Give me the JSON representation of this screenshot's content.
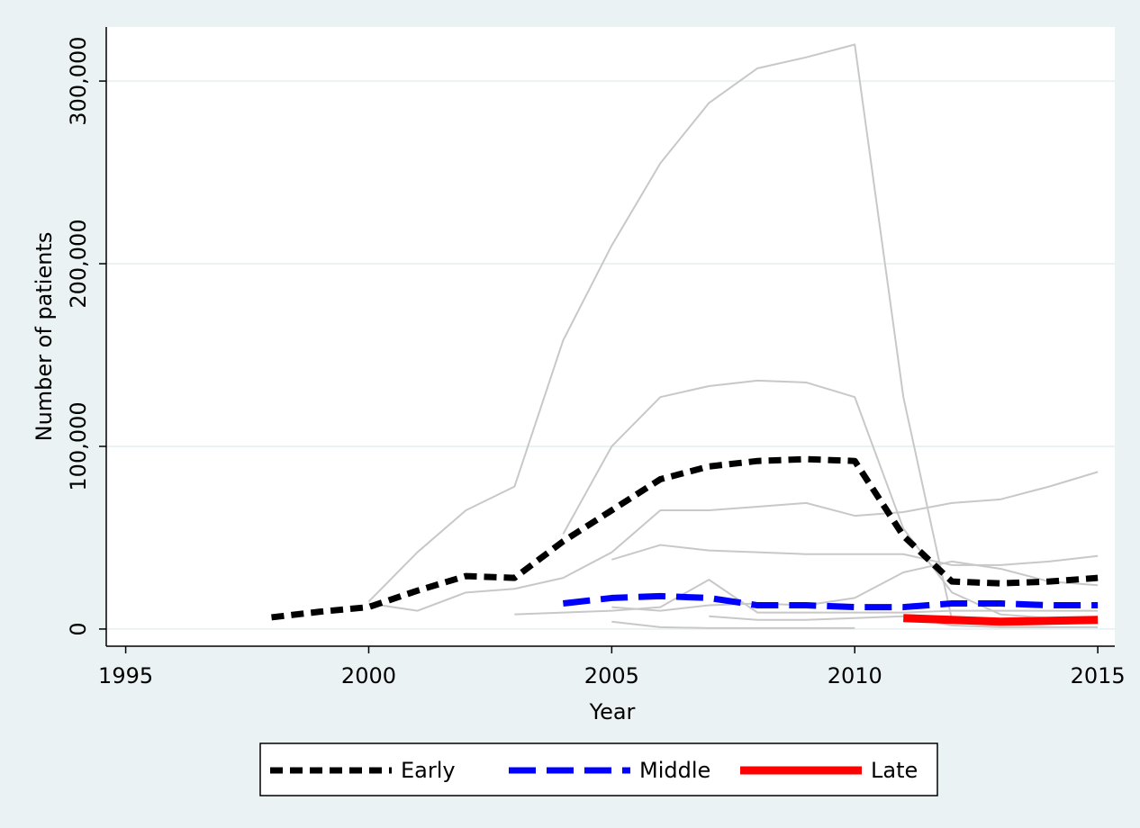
{
  "chart_data": {
    "type": "line",
    "x_label": "Year",
    "y_label": "Number of patients",
    "x": [
      1998,
      1999,
      2000,
      2001,
      2002,
      2003,
      2004,
      2005,
      2006,
      2007,
      2008,
      2009,
      2010,
      2011,
      2012,
      2013,
      2014,
      2015
    ],
    "series": [
      {
        "name": "Early",
        "color": "#000000",
        "dash": "short",
        "values": [
          6400,
          9500,
          12000,
          21000,
          29000,
          28000,
          48000,
          65000,
          82000,
          89000,
          92000,
          93000,
          92000,
          51000,
          26000,
          25000,
          26000,
          28000
        ]
      },
      {
        "name": "Middle",
        "color": "#0000ff",
        "dash": "long",
        "values": [
          null,
          null,
          null,
          null,
          null,
          null,
          14000,
          17000,
          18000,
          17000,
          13000,
          13000,
          12000,
          12000,
          14000,
          14000,
          13000,
          13000
        ]
      },
      {
        "name": "Late",
        "color": "#ff0000",
        "dash": "solid",
        "values": [
          null,
          null,
          null,
          null,
          null,
          null,
          null,
          null,
          null,
          null,
          null,
          null,
          null,
          6000,
          5000,
          4000,
          4500,
          5000
        ]
      }
    ],
    "background_color": "#c8c8c8",
    "background_series": [
      [
        null,
        null,
        15000,
        42000,
        65000,
        78000,
        158000,
        210000,
        255000,
        288000,
        307000,
        313000,
        320000,
        127000,
        5000,
        5000,
        5000,
        5000
      ],
      [
        null,
        null,
        null,
        null,
        null,
        null,
        52000,
        100000,
        127000,
        133000,
        136000,
        135000,
        127000,
        55000,
        20000,
        8000,
        6000,
        6000
      ],
      [
        null,
        null,
        14000,
        10000,
        20000,
        22000,
        28000,
        42000,
        65000,
        65000,
        67000,
        69000,
        62000,
        64000,
        69000,
        71000,
        78000,
        86000
      ],
      [
        null,
        null,
        null,
        null,
        null,
        null,
        null,
        38000,
        46000,
        43000,
        42000,
        41000,
        41000,
        41000,
        35000,
        35000,
        37000,
        40000
      ],
      [
        null,
        null,
        null,
        null,
        null,
        null,
        null,
        12000,
        10000,
        13000,
        14000,
        13000,
        17000,
        31000,
        37000,
        33000,
        26000,
        24000
      ],
      [
        null,
        null,
        null,
        null,
        null,
        8000,
        9000,
        10000,
        12000,
        27000,
        9000,
        9000,
        9000,
        9000,
        10000,
        10000,
        10000,
        10000
      ],
      [
        null,
        null,
        null,
        null,
        null,
        null,
        null,
        4000,
        1000,
        500,
        500,
        500,
        500,
        null,
        null,
        null,
        null,
        null
      ],
      [
        null,
        null,
        null,
        null,
        null,
        null,
        null,
        null,
        null,
        7000,
        5000,
        5000,
        6000,
        7000,
        2000,
        1000,
        1000,
        1000
      ]
    ],
    "xlim": [
      1994.6,
      2015.35
    ],
    "xticks": [
      1995,
      2000,
      2005,
      2010,
      2015
    ],
    "ylim": [
      -9400,
      329600
    ],
    "yticks": [
      0,
      {
        "value": 100000,
        "label": "100,000"
      },
      {
        "value": 200000,
        "label": "200,000"
      },
      {
        "value": 300000,
        "label": "300,000"
      }
    ],
    "grid": true,
    "legend": "bottom"
  }
}
